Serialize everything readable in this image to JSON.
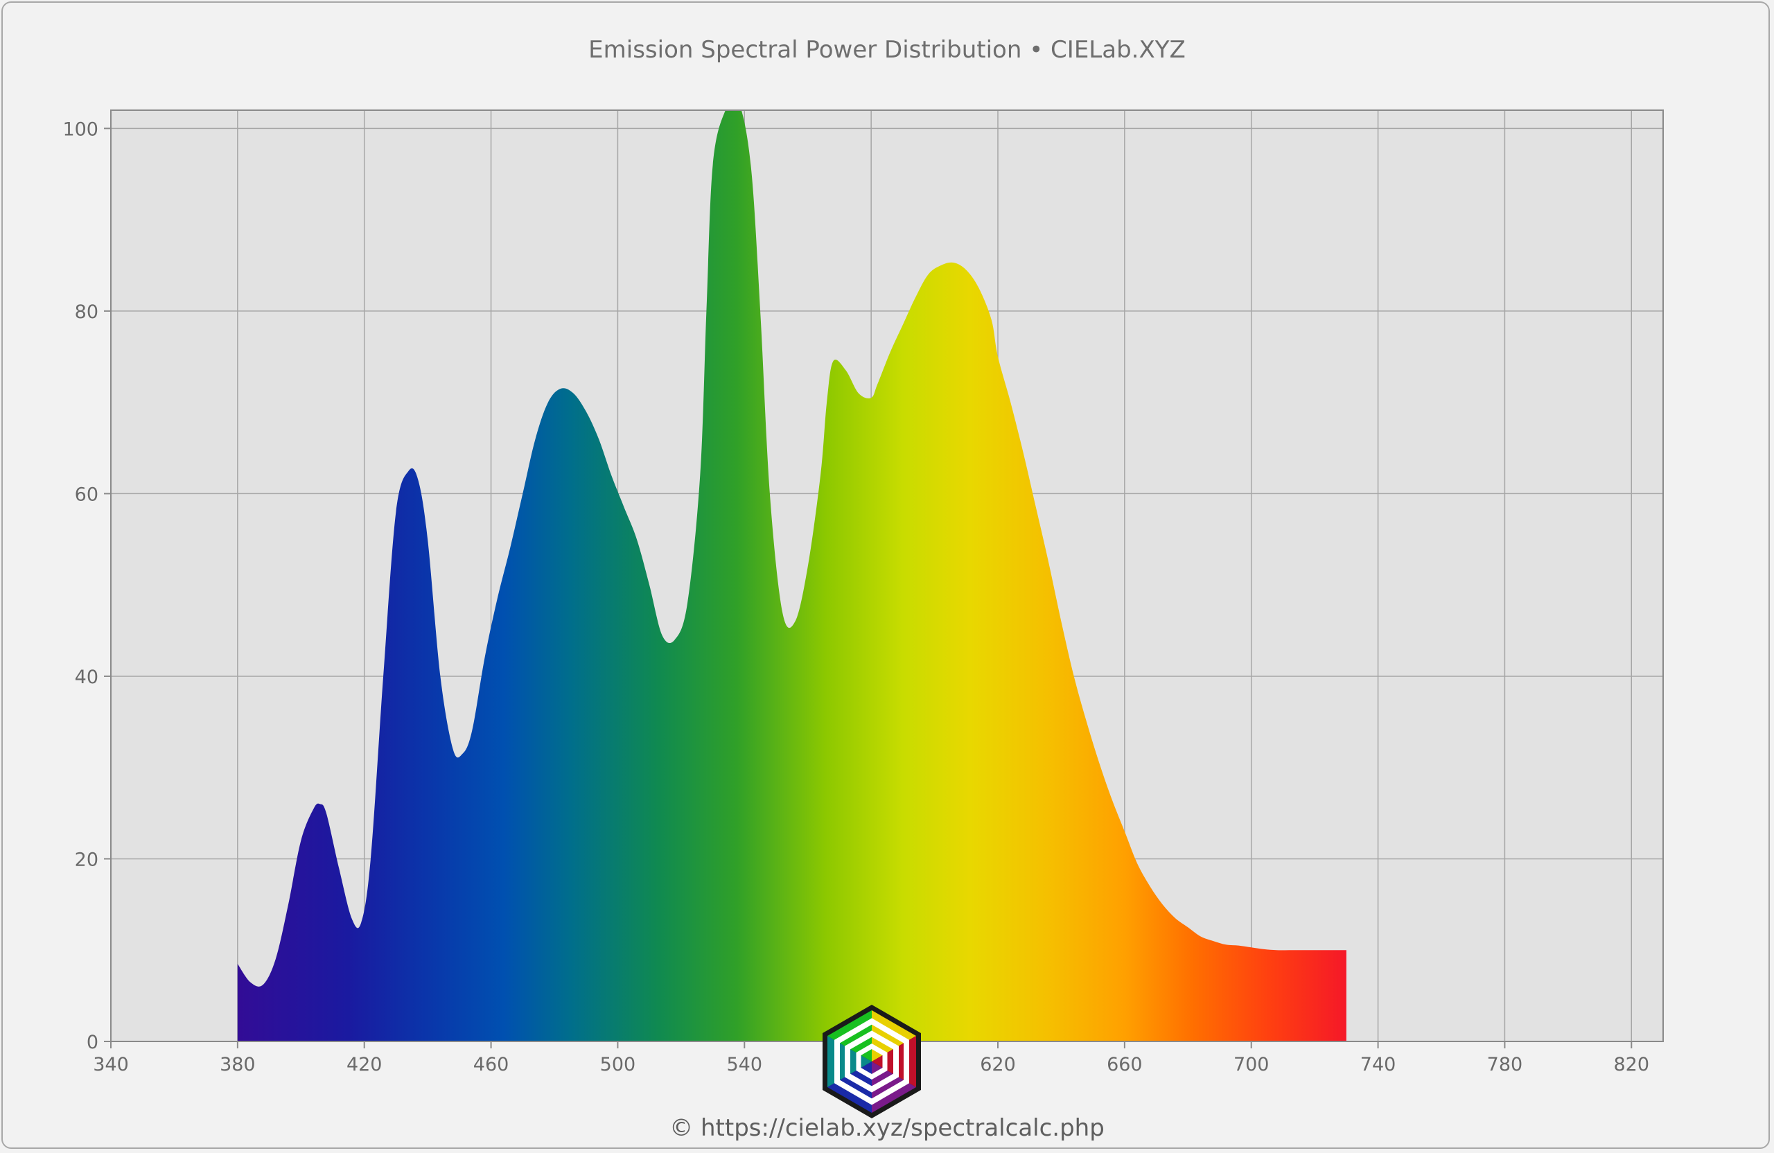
{
  "title": "Emission Spectral Power Distribution  •  CIELab.XYZ",
  "footer": "© https://cielab.xyz/spectralcalc.php",
  "colors": {
    "background": "#f2f2f2",
    "plot_background": "#e2e2e2",
    "grid": "#a6a6a6"
  },
  "logo_icon": "cielab-hexagon-logo",
  "chart_data": {
    "type": "area",
    "title": "Emission Spectral Power Distribution  •  CIELab.XYZ",
    "xlabel": "",
    "ylabel": "",
    "xlim": [
      340,
      830
    ],
    "ylim": [
      0,
      102
    ],
    "x_ticks": [
      340,
      380,
      420,
      460,
      500,
      540,
      580,
      620,
      660,
      700,
      740,
      780,
      820
    ],
    "y_ticks": [
      0,
      20,
      40,
      60,
      80,
      100
    ],
    "grid": true,
    "fill": "visible-spectrum gradient",
    "x": [
      380,
      384,
      388,
      392,
      396,
      400,
      404,
      406,
      408,
      412,
      416,
      419,
      422,
      426,
      430,
      434,
      437,
      440,
      444,
      448,
      451,
      454,
      458,
      462,
      466,
      470,
      474,
      478,
      482,
      486,
      490,
      494,
      498,
      502,
      506,
      510,
      514,
      518,
      522,
      526,
      528,
      530,
      534,
      538,
      542,
      545,
      548,
      552,
      556,
      560,
      564,
      566,
      568,
      572,
      576,
      580,
      582,
      586,
      590,
      594,
      598,
      602,
      606,
      610,
      614,
      618,
      620,
      624,
      628,
      632,
      636,
      640,
      644,
      648,
      652,
      656,
      660,
      664,
      668,
      672,
      676,
      680,
      684,
      688,
      692,
      696,
      700,
      704,
      708,
      712,
      716,
      720,
      724,
      728,
      730
    ],
    "y": [
      8.5,
      6.5,
      6.2,
      9,
      15,
      22,
      25.5,
      26,
      25,
      19,
      13.5,
      13,
      20,
      40,
      58,
      62.5,
      61.5,
      55,
      40,
      32,
      31.5,
      34,
      42,
      48.5,
      54,
      60,
      66,
      70,
      71.5,
      71,
      69,
      66,
      62,
      58.5,
      55,
      50,
      44.5,
      44,
      48,
      62,
      80,
      96,
      102,
      103,
      96,
      80,
      60,
      47,
      46,
      52,
      62,
      70,
      74.5,
      73.5,
      71,
      70.5,
      72,
      75.5,
      78.5,
      81.5,
      84,
      85,
      85.3,
      84.5,
      82.5,
      79,
      75,
      70,
      64.5,
      58.5,
      52.5,
      46,
      40,
      35,
      30.5,
      26.5,
      23,
      19.5,
      17,
      15,
      13.5,
      12.5,
      11.5,
      11,
      10.6,
      10.5,
      10.3,
      10.1,
      10,
      10,
      10,
      10,
      10,
      10,
      10
    ]
  }
}
